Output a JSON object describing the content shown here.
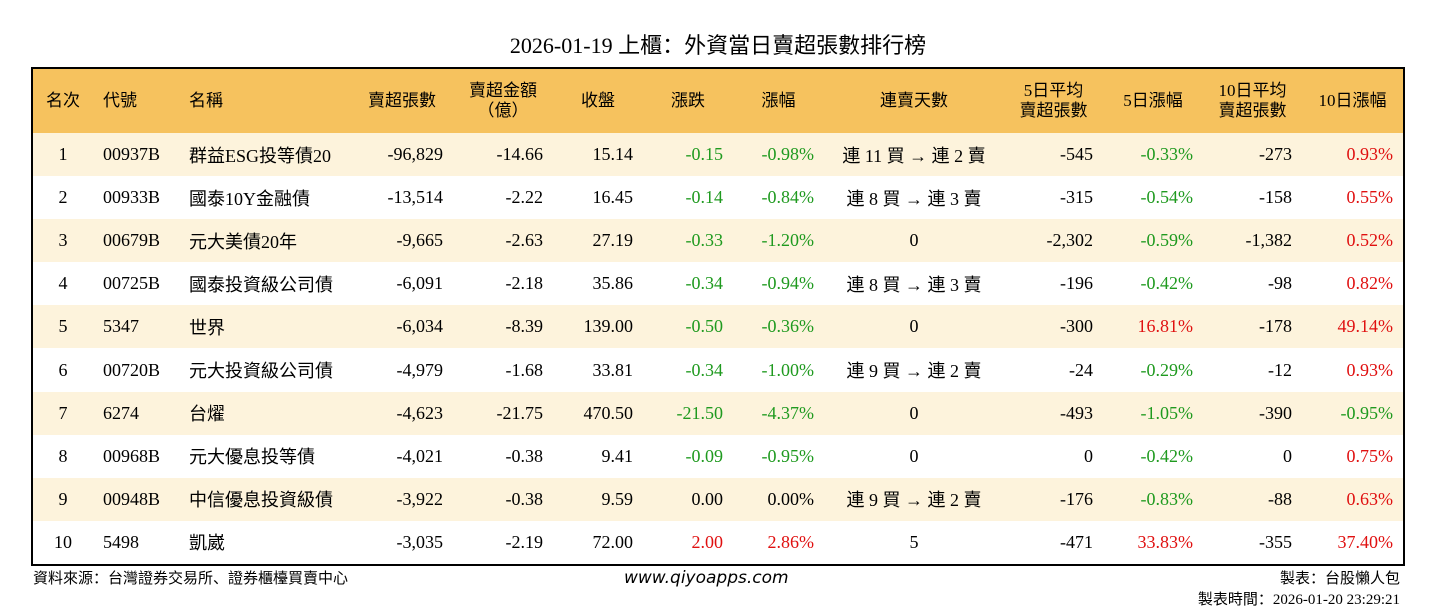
{
  "header": {
    "title": "2026-01-19 上櫃：外資當日賣超張數排行榜"
  },
  "table": {
    "columns": [
      "名次",
      "代號",
      "名稱",
      "賣超張數",
      "賣超金額\n（億）",
      "收盤",
      "漲跌",
      "漲幅",
      "連賣天數",
      "5日平均\n賣超張數",
      "5日漲幅",
      "10日平均\n賣超張數",
      "10日漲幅"
    ],
    "rows": [
      [
        "1",
        "00937B",
        "群益ESG投等債20",
        "-96,829",
        "-14.66",
        "15.14",
        "-0.15",
        "-0.98%",
        "連 11 買 → 連 2 賣",
        "-545",
        "-0.33%",
        "-273",
        "0.93%"
      ],
      [
        "2",
        "00933B",
        "國泰10Y金融債",
        "-13,514",
        "-2.22",
        "16.45",
        "-0.14",
        "-0.84%",
        "連 8 買 → 連 3 賣",
        "-315",
        "-0.54%",
        "-158",
        "0.55%"
      ],
      [
        "3",
        "00679B",
        "元大美債20年",
        "-9,665",
        "-2.63",
        "27.19",
        "-0.33",
        "-1.20%",
        "0",
        "-2,302",
        "-0.59%",
        "-1,382",
        "0.52%"
      ],
      [
        "4",
        "00725B",
        "國泰投資級公司債",
        "-6,091",
        "-2.18",
        "35.86",
        "-0.34",
        "-0.94%",
        "連 8 買 → 連 3 賣",
        "-196",
        "-0.42%",
        "-98",
        "0.82%"
      ],
      [
        "5",
        "5347",
        "世界",
        "-6,034",
        "-8.39",
        "139.00",
        "-0.50",
        "-0.36%",
        "0",
        "-300",
        "16.81%",
        "-178",
        "49.14%"
      ],
      [
        "6",
        "00720B",
        "元大投資級公司債",
        "-4,979",
        "-1.68",
        "33.81",
        "-0.34",
        "-1.00%",
        "連 9 買 → 連 2 賣",
        "-24",
        "-0.29%",
        "-12",
        "0.93%"
      ],
      [
        "7",
        "6274",
        "台燿",
        "-4,623",
        "-21.75",
        "470.50",
        "-21.50",
        "-4.37%",
        "0",
        "-493",
        "-1.05%",
        "-390",
        "-0.95%"
      ],
      [
        "8",
        "00968B",
        "元大優息投等債",
        "-4,021",
        "-0.38",
        "9.41",
        "-0.09",
        "-0.95%",
        "0",
        "0",
        "-0.42%",
        "0",
        "0.75%"
      ],
      [
        "9",
        "00948B",
        "中信優息投資級債",
        "-3,922",
        "-0.38",
        "9.59",
        "0.00",
        "0.00%",
        "連 9 買 → 連 2 賣",
        "-176",
        "-0.83%",
        "-88",
        "0.63%"
      ],
      [
        "10",
        "5498",
        "凱崴",
        "-3,035",
        "-2.19",
        "72.00",
        "2.00",
        "2.86%",
        "5",
        "-471",
        "33.83%",
        "-355",
        "37.40%"
      ]
    ]
  },
  "footer": {
    "source": "資料來源：台灣證券交易所、證券櫃檯買賣中心",
    "website": "www.qiyoapps.com",
    "maker": "製表：台股懶人包",
    "time": "製表時間：2026-01-20 23:29:21"
  }
}
